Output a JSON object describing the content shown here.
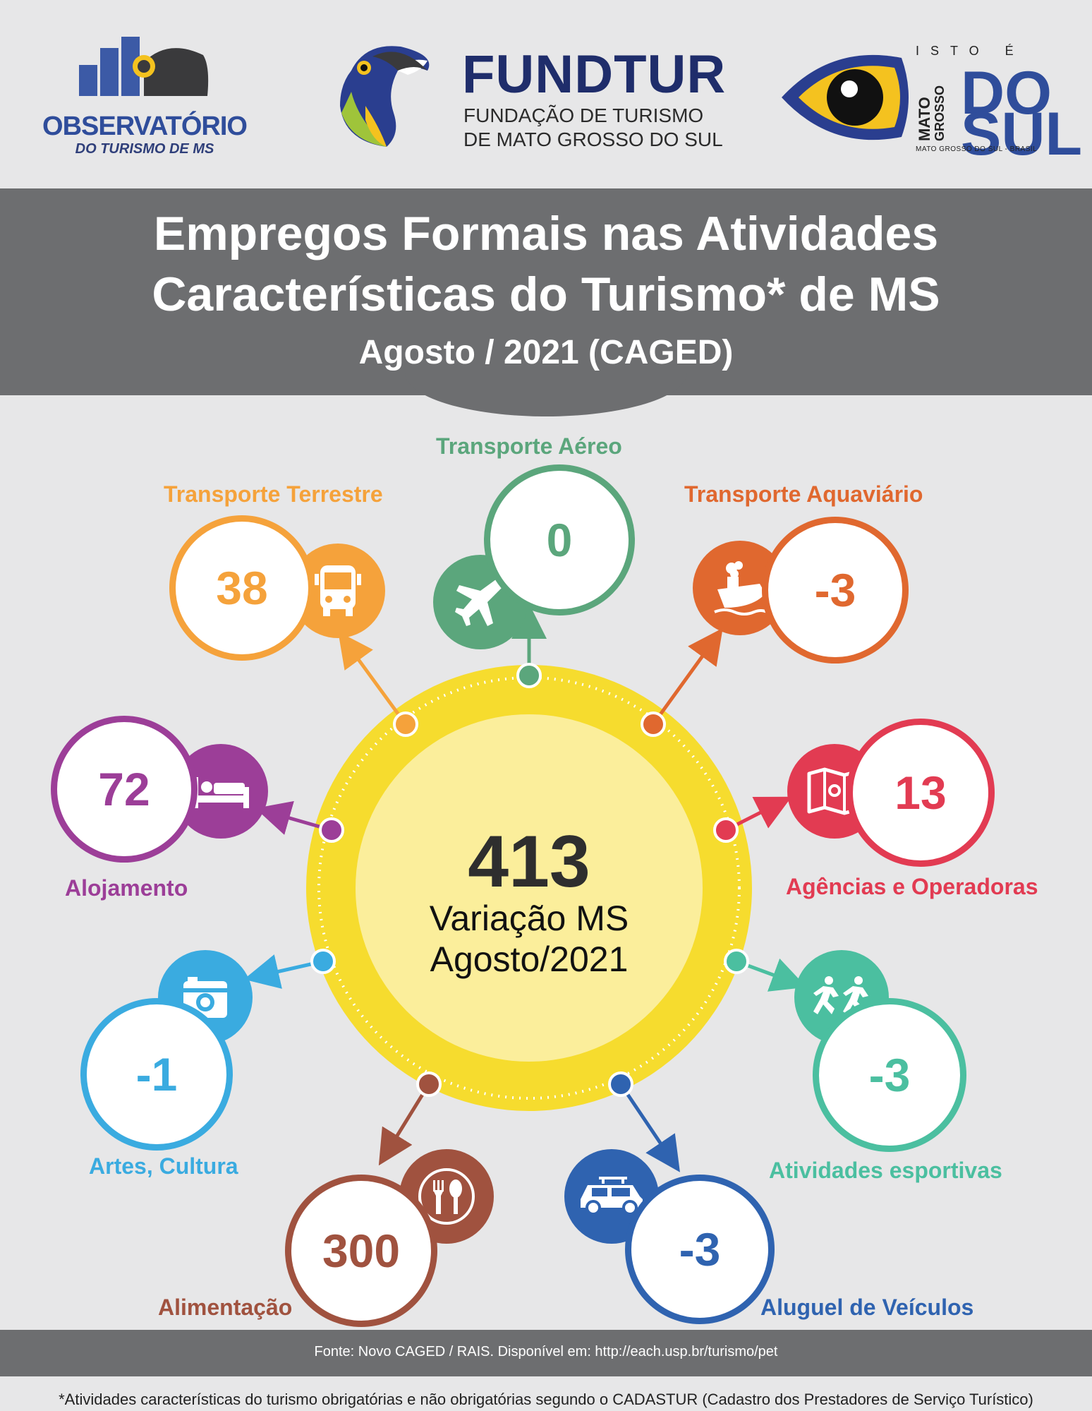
{
  "logos": {
    "observatorio": {
      "name": "OBSERVATÓRIO",
      "sub": "DO TURISMO DE MS"
    },
    "fundtur": {
      "name": "FUNDTUR",
      "sub1": "FUNDAÇÃO DE TURISMO",
      "sub2": "DE MATO GROSSO DO SUL"
    },
    "ms": {
      "isto": "ISTO É",
      "mato": "MATO",
      "grosso": "GROSSO",
      "do": "DO",
      "sul": "SUL",
      "footer": "MATO GROSSO DO SUL - BRASIL"
    }
  },
  "banner": {
    "title_line1": "Empregos Formais nas Atividades",
    "title_line2": "Características do Turismo* de MS",
    "subtitle": "Agosto / 2021 (CAGED)"
  },
  "center": {
    "value": "413",
    "line1": "Variação MS",
    "line2": "Agosto/2021"
  },
  "colors": {
    "terrestre": "#f5a23b",
    "aereo": "#5ba67c",
    "aquaviario": "#e0682f",
    "alojamento": "#9c3e98",
    "agencias": "#e23b52",
    "artes": "#3aabe0",
    "esportivas": "#4bbfa0",
    "alimentacao": "#a0523f",
    "aluguel": "#2f63b0",
    "hub_outer": "#f6dc2e",
    "hub_inner": "#fbee9b"
  },
  "activities": [
    {
      "id": "terrestre",
      "label": "Transporte Terrestre",
      "value": "38",
      "icon": "bus-icon"
    },
    {
      "id": "aereo",
      "label": "Transporte Aéreo",
      "value": "0",
      "icon": "airplane-icon"
    },
    {
      "id": "aquaviario",
      "label": "Transporte Aquaviário",
      "value": "-3",
      "icon": "ship-icon"
    },
    {
      "id": "alojamento",
      "label": "Alojamento",
      "value": "72",
      "icon": "bed-icon"
    },
    {
      "id": "agencias",
      "label": "Agências e Operadoras",
      "value": "13",
      "icon": "map-icon"
    },
    {
      "id": "artes",
      "label": "Artes, Cultura",
      "value": "-1",
      "icon": "camera-icon"
    },
    {
      "id": "esportivas",
      "label": "Atividades esportivas",
      "value": "-3",
      "icon": "runners-icon"
    },
    {
      "id": "alimentacao",
      "label": "Alimentação",
      "value": "300",
      "icon": "cutlery-icon"
    },
    {
      "id": "aluguel",
      "label": "Aluguel de Veículos",
      "value": "-3",
      "icon": "car-icon"
    }
  ],
  "footer": {
    "source": "Fonte: Novo CAGED / RAIS. Disponível em: http://each.usp.br/turismo/pet",
    "footnote": "*Atividades características do turismo obrigatórias e não obrigatórias segundo o CADASTUR (Cadastro dos Prestadores de Serviço Turístico)"
  }
}
